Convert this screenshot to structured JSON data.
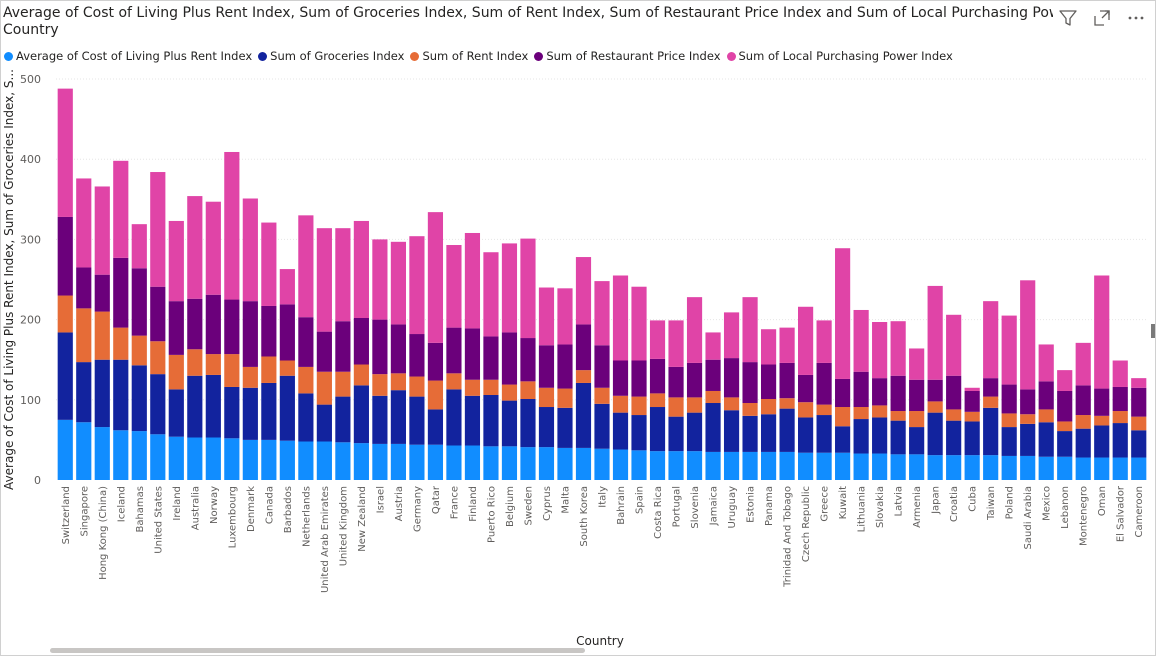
{
  "title_line1": "Average of Cost of Living Plus Rent Index, Sum of Groceries Index, Sum of Rent Index, Sum of Restaurant Price Index and Sum of Local Purchasing Power In",
  "title_line2": "Country",
  "icons": [
    "filter-icon",
    "focus-mode-icon",
    "more-options-icon"
  ],
  "legend": [
    {
      "label": "Average of Cost of Living Plus Rent Index",
      "color": "#118DFF"
    },
    {
      "label": "Sum of Groceries Index",
      "color": "#12239E"
    },
    {
      "label": "Sum of Rent Index",
      "color": "#E66C37"
    },
    {
      "label": "Sum of Restaurant Price Index",
      "color": "#6B007B"
    },
    {
      "label": "Sum of Local Purchasing Power Index",
      "color": "#E044A7"
    }
  ],
  "chart_data": {
    "type": "bar",
    "stacked": true,
    "xlabel": "Country",
    "ylabel": "Average of Cost of Living Plus Rent Index, Sum of Groceries Index, S...",
    "ylim": [
      0,
      500
    ],
    "yticks": [
      0,
      100,
      200,
      300,
      400,
      500
    ],
    "categories": [
      "Switzerland",
      "Singapore",
      "Hong Kong (China)",
      "Iceland",
      "Bahamas",
      "United States",
      "Ireland",
      "Australia",
      "Norway",
      "Luxembourg",
      "Denmark",
      "Canada",
      "Barbados",
      "Netherlands",
      "United Arab Emirates",
      "United Kingdom",
      "New Zealand",
      "Israel",
      "Austria",
      "Germany",
      "Qatar",
      "France",
      "Finland",
      "Puerto Rico",
      "Belgium",
      "Sweden",
      "Cyprus",
      "Malta",
      "South Korea",
      "Italy",
      "Bahrain",
      "Spain",
      "Costa Rica",
      "Portugal",
      "Slovenia",
      "Jamaica",
      "Uruguay",
      "Estonia",
      "Panama",
      "Trinidad And Tobago",
      "Czech Republic",
      "Greece",
      "Kuwait",
      "Lithuania",
      "Slovakia",
      "Latvia",
      "Armenia",
      "Japan",
      "Croatia",
      "Cuba",
      "Taiwan",
      "Poland",
      "Saudi Arabia",
      "Mexico",
      "Lebanon",
      "Montenegro",
      "Oman",
      "El Salvador",
      "Cameroon"
    ],
    "series": [
      {
        "name": "Average of Cost of Living Plus Rent Index",
        "color": "#118DFF",
        "values": [
          75,
          72,
          66,
          62,
          61,
          57,
          54,
          53,
          53,
          52,
          50,
          50,
          49,
          48,
          48,
          47,
          46,
          45,
          45,
          44,
          44,
          43,
          43,
          42,
          42,
          41,
          41,
          40,
          40,
          39,
          38,
          37,
          36,
          36,
          36,
          35,
          35,
          35,
          35,
          35,
          34,
          34,
          34,
          33,
          33,
          32,
          32,
          31,
          31,
          31,
          31,
          30,
          30,
          29,
          29,
          28,
          28,
          28,
          28
        ]
      },
      {
        "name": "Sum of Groceries Index",
        "color": "#12239E",
        "values": [
          109,
          75,
          84,
          88,
          82,
          75,
          59,
          77,
          78,
          64,
          65,
          71,
          81,
          60,
          46,
          57,
          72,
          60,
          67,
          60,
          44,
          70,
          62,
          64,
          57,
          60,
          50,
          50,
          81,
          56,
          46,
          44,
          55,
          43,
          48,
          61,
          52,
          45,
          47,
          54,
          44,
          47,
          33,
          43,
          45,
          42,
          34,
          53,
          43,
          42,
          59,
          36,
          40,
          43,
          32,
          36,
          40,
          43,
          34
        ]
      },
      {
        "name": "Sum of Rent Index",
        "color": "#E66C37",
        "values": [
          46,
          67,
          60,
          40,
          37,
          41,
          43,
          33,
          26,
          41,
          26,
          33,
          19,
          33,
          41,
          31,
          26,
          27,
          21,
          25,
          36,
          20,
          20,
          19,
          20,
          22,
          24,
          24,
          16,
          20,
          21,
          23,
          17,
          24,
          19,
          15,
          16,
          16,
          19,
          13,
          19,
          13,
          24,
          15,
          15,
          12,
          20,
          14,
          14,
          12,
          14,
          17,
          12,
          16,
          12,
          17,
          12,
          15,
          17
        ]
      },
      {
        "name": "Sum of Restaurant Price Index",
        "color": "#6B007B",
        "values": [
          98,
          51,
          46,
          87,
          84,
          68,
          67,
          63,
          74,
          68,
          82,
          63,
          70,
          62,
          50,
          63,
          58,
          68,
          61,
          53,
          47,
          57,
          64,
          54,
          65,
          54,
          53,
          55,
          57,
          53,
          44,
          45,
          43,
          38,
          43,
          39,
          49,
          51,
          43,
          44,
          34,
          52,
          35,
          44,
          34,
          44,
          39,
          27,
          42,
          26,
          23,
          36,
          31,
          35,
          38,
          37,
          34,
          30,
          36
        ]
      },
      {
        "name": "Sum of Local Purchasing Power Index",
        "color": "#E044A7",
        "values": [
          160,
          111,
          110,
          121,
          55,
          143,
          100,
          128,
          116,
          184,
          128,
          104,
          44,
          127,
          129,
          116,
          121,
          100,
          103,
          122,
          163,
          103,
          119,
          105,
          111,
          124,
          72,
          70,
          84,
          80,
          106,
          92,
          48,
          58,
          82,
          34,
          57,
          81,
          44,
          44,
          85,
          53,
          163,
          77,
          70,
          68,
          39,
          117,
          76,
          4,
          96,
          86,
          136,
          46,
          26,
          53,
          141,
          33,
          12
        ]
      }
    ]
  }
}
